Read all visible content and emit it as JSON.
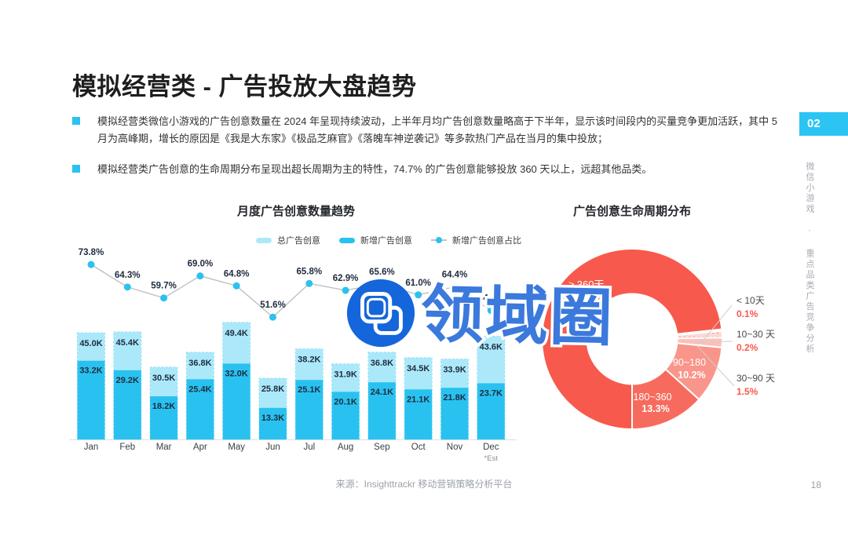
{
  "slide": {
    "title": "模拟经营类 - 广告投放大盘趋势",
    "bullets": [
      "模拟经营类微信小游戏的广告创意数量在 2024 年呈现持续波动，上半年月均广告创意数量略高于下半年，显示该时间段内的买量竞争更加活跃，其中 5 月为高峰期，增长的原因是《我是大东家》《极品芝麻官》《落魄车神逆袭记》等多款热门产品在当月的集中投放；",
      "模拟经营类广告创意的生命周期分布呈现出超长周期为主的特性，74.7% 的广告创意能够投放 360 天以上，远超其他品类。"
    ],
    "source": "来源：Insighttrackr 移动营销策略分析平台",
    "page_number": "18",
    "section_badge": "02",
    "sidebar_vertical_text": "微信小游戏 · 重点品类广告竞争分析"
  },
  "watermark": {
    "text": "领域圈",
    "logo": "overlapping-rounded-squares-in-circle"
  },
  "colors": {
    "accent_cyan": "#2BC1F0",
    "bar_light": "#ABE9FA",
    "bar_dark": "#29C2F0",
    "line_gray": "#C4C4C4",
    "label_navy": "#1F2B3E",
    "donut_red": "#F7594C",
    "watermark_blue": "#3B79DC",
    "watermark_circle_blue": "#1566DB",
    "muted_gray": "#9CA1A8"
  },
  "chart_data": [
    {
      "type": "bar",
      "subtype": "stacked-bars-with-line",
      "title": "月度广告创意数量趋势",
      "categories": [
        "Jan",
        "Feb",
        "Mar",
        "Apr",
        "May",
        "Jun",
        "Jul",
        "Aug",
        "Sep",
        "Oct",
        "Nov",
        "Dec"
      ],
      "footnote": "*Est",
      "unit": "K",
      "ylim_k": [
        0,
        50
      ],
      "legend_position": "top-center",
      "series": [
        {
          "name": "总广告创意",
          "type": "bar",
          "color": "#ABE9FA",
          "values": [
            45.0,
            45.4,
            30.5,
            36.8,
            49.4,
            25.8,
            38.2,
            31.9,
            36.8,
            34.5,
            33.9,
            43.6
          ]
        },
        {
          "name": "新增广告创意",
          "type": "bar",
          "color": "#29C2F0",
          "values": [
            33.2,
            29.2,
            18.2,
            25.4,
            32.0,
            13.3,
            25.1,
            20.1,
            24.1,
            21.1,
            21.8,
            23.7
          ]
        },
        {
          "name": "新增广告创意占比",
          "type": "line",
          "color": "#2BC1F0",
          "unit": "%",
          "values": [
            73.8,
            64.3,
            59.7,
            69.0,
            64.8,
            51.6,
            65.8,
            62.9,
            65.6,
            61.0,
            64.4,
            54.4
          ]
        }
      ]
    },
    {
      "type": "pie",
      "subtype": "donut",
      "title": "广告创意生命周期分布",
      "start_angle": "bottom",
      "direction": "clockwise",
      "slices": [
        {
          "label": "≥ 360天",
          "value_pct": 74.7,
          "color": "#F7594C",
          "label_position": "inside"
        },
        {
          "label": "180~360",
          "value_pct": 13.3,
          "color": "#F76B5E",
          "label_position": "inside"
        },
        {
          "label": "90~180",
          "value_pct": 10.2,
          "color": "#F9958A",
          "label_position": "inside"
        },
        {
          "label": "30~90 天",
          "value_pct": 1.5,
          "color": "#FBC0B9",
          "label_position": "outside"
        },
        {
          "label": "10~30 天",
          "value_pct": 0.2,
          "color": "#FBD9D4",
          "pattern": "dots",
          "label_position": "outside"
        },
        {
          "label": "< 10天",
          "value_pct": 0.1,
          "color": "#FDE8E5",
          "label_position": "outside"
        }
      ]
    }
  ]
}
